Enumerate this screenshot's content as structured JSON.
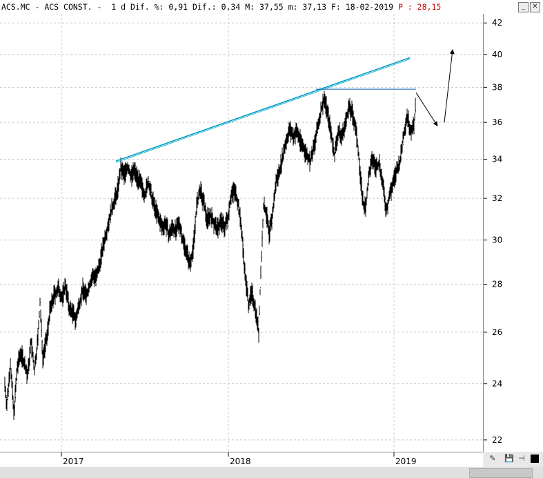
{
  "header": {
    "ticker": "ACS.MC",
    "name": "ACS CONST.",
    "period": "1 d",
    "dif_pct_label": "Dif. %:",
    "dif_pct": "0,91",
    "dif_label": "Dif.:",
    "dif": "0,34",
    "max_label": "M:",
    "max": "37,55",
    "min_label": "m:",
    "min": "37,13",
    "date_label": "F:",
    "date": "18-02-2019",
    "p_label": "P :",
    "p_value": "28,15"
  },
  "window_buttons": {
    "minimize": "_",
    "close": "✕"
  },
  "corner_tools": {
    "tool1": "✎",
    "tool2": "💾",
    "tool3": "⊣"
  },
  "chart_data": {
    "type": "line",
    "yscale": "log",
    "ylim": [
      21.6,
      42.6
    ],
    "y_ticks": [
      22,
      24,
      26,
      28,
      30,
      32,
      34,
      36,
      38,
      40,
      42
    ],
    "x_labels": [
      {
        "label": "2017",
        "index": 89
      },
      {
        "label": "2018",
        "index": 331
      },
      {
        "label": "2019",
        "index": 571
      }
    ],
    "grid": true,
    "anchor_points": [
      [
        7,
        24.0
      ],
      [
        10,
        23.2
      ],
      [
        15,
        24.8
      ],
      [
        20,
        22.9
      ],
      [
        25,
        24.6
      ],
      [
        30,
        25.2
      ],
      [
        35,
        24.8
      ],
      [
        40,
        24.3
      ],
      [
        45,
        25.6
      ],
      [
        50,
        24.5
      ],
      [
        55,
        25.8
      ],
      [
        58,
        27.2
      ],
      [
        62,
        25.0
      ],
      [
        68,
        25.8
      ],
      [
        72,
        26.8
      ],
      [
        78,
        27.5
      ],
      [
        85,
        27.8
      ],
      [
        90,
        27.4
      ],
      [
        95,
        28.0
      ],
      [
        100,
        27.0
      ],
      [
        105,
        26.8
      ],
      [
        110,
        26.5
      ],
      [
        115,
        27.2
      ],
      [
        120,
        27.8
      ],
      [
        125,
        27.5
      ],
      [
        130,
        28.0
      ],
      [
        135,
        28.4
      ],
      [
        140,
        28.3
      ],
      [
        145,
        29.0
      ],
      [
        150,
        29.8
      ],
      [
        155,
        30.5
      ],
      [
        160,
        31.2
      ],
      [
        165,
        31.8
      ],
      [
        170,
        32.3
      ],
      [
        175,
        33.5
      ],
      [
        180,
        33.2
      ],
      [
        185,
        33.6
      ],
      [
        190,
        33.1
      ],
      [
        195,
        33.4
      ],
      [
        200,
        33.0
      ],
      [
        205,
        32.6
      ],
      [
        210,
        32.2
      ],
      [
        215,
        32.8
      ],
      [
        220,
        32.0
      ],
      [
        225,
        31.5
      ],
      [
        230,
        31.0
      ],
      [
        235,
        30.6
      ],
      [
        240,
        30.8
      ],
      [
        245,
        30.2
      ],
      [
        250,
        30.6
      ],
      [
        255,
        30.4
      ],
      [
        260,
        30.8
      ],
      [
        265,
        30.0
      ],
      [
        270,
        29.5
      ],
      [
        275,
        28.9
      ],
      [
        280,
        29.6
      ],
      [
        285,
        31.6
      ],
      [
        290,
        32.4
      ],
      [
        295,
        31.8
      ],
      [
        300,
        31.0
      ],
      [
        305,
        31.2
      ],
      [
        310,
        30.8
      ],
      [
        315,
        30.5
      ],
      [
        320,
        30.9
      ],
      [
        325,
        30.6
      ],
      [
        330,
        31.0
      ],
      [
        335,
        32.2
      ],
      [
        340,
        32.4
      ],
      [
        345,
        31.8
      ],
      [
        350,
        30.5
      ],
      [
        355,
        28.5
      ],
      [
        360,
        27.2
      ],
      [
        365,
        27.6
      ],
      [
        370,
        27.0
      ],
      [
        375,
        26.0
      ],
      [
        378,
        28.5
      ],
      [
        382,
        31.6
      ],
      [
        386,
        31.3
      ],
      [
        390,
        30.2
      ],
      [
        395,
        31.2
      ],
      [
        400,
        32.8
      ],
      [
        405,
        33.4
      ],
      [
        410,
        34.2
      ],
      [
        415,
        35.0
      ],
      [
        420,
        35.6
      ],
      [
        425,
        35.2
      ],
      [
        430,
        35.5
      ],
      [
        435,
        35.0
      ],
      [
        440,
        34.6
      ],
      [
        445,
        34.2
      ],
      [
        450,
        33.9
      ],
      [
        455,
        34.6
      ],
      [
        460,
        35.6
      ],
      [
        465,
        36.6
      ],
      [
        470,
        37.4
      ],
      [
        475,
        36.5
      ],
      [
        480,
        35.4
      ],
      [
        485,
        34.2
      ],
      [
        490,
        35.5
      ],
      [
        495,
        35.2
      ],
      [
        500,
        35.8
      ],
      [
        505,
        36.8
      ],
      [
        510,
        36.6
      ],
      [
        515,
        35.8
      ],
      [
        520,
        34.2
      ],
      [
        523,
        32.8
      ],
      [
        527,
        31.6
      ],
      [
        530,
        31.6
      ],
      [
        535,
        33.2
      ],
      [
        540,
        34.0
      ],
      [
        545,
        33.6
      ],
      [
        550,
        33.8
      ],
      [
        555,
        32.6
      ],
      [
        560,
        31.4
      ],
      [
        565,
        32.2
      ],
      [
        570,
        32.8
      ],
      [
        575,
        33.4
      ],
      [
        580,
        33.9
      ],
      [
        585,
        35.3
      ],
      [
        590,
        36.4
      ],
      [
        595,
        35.6
      ],
      [
        600,
        35.7
      ],
      [
        603,
        37.4
      ]
    ],
    "annotations": {
      "trendline": {
        "color": "#00a0c8",
        "from": [
          168,
          33.9
        ],
        "to": [
          594,
          39.8
        ]
      },
      "resistance": {
        "color": "#0060b0",
        "from": [
          458,
          37.9
        ],
        "to": [
          603,
          37.9
        ]
      },
      "arrow_down": {
        "from": [
          603,
          37.7
        ],
        "to": [
          634,
          35.8
        ]
      },
      "arrow_up": {
        "from": [
          644,
          36.0
        ],
        "to": [
          656,
          40.3
        ]
      }
    }
  }
}
